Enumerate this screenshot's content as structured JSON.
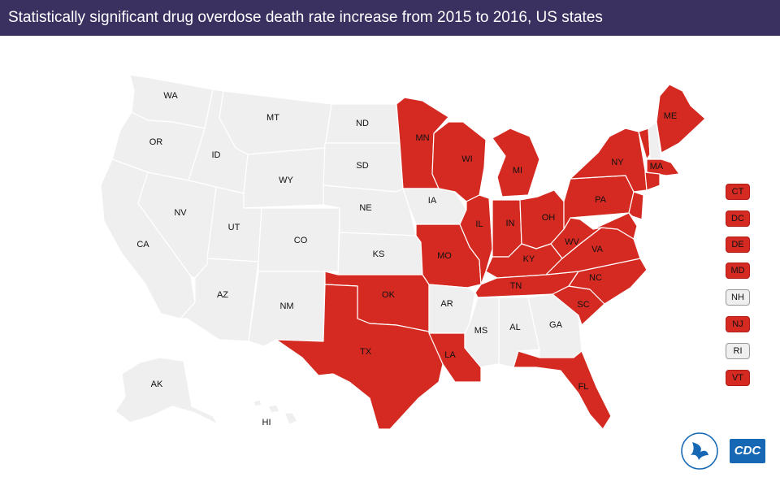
{
  "title": "Statistically significant drug overdose death rate increase from 2015 to 2016, US states",
  "colors": {
    "increase": "#d42a22",
    "no_increase": "#efefef",
    "border": "#ffffff",
    "title_bg": "#3a3161"
  },
  "states": [
    {
      "abbr": "WA",
      "increase": false
    },
    {
      "abbr": "OR",
      "increase": false
    },
    {
      "abbr": "CA",
      "increase": false
    },
    {
      "abbr": "ID",
      "increase": false
    },
    {
      "abbr": "NV",
      "increase": false
    },
    {
      "abbr": "MT",
      "increase": false
    },
    {
      "abbr": "WY",
      "increase": false
    },
    {
      "abbr": "UT",
      "increase": false
    },
    {
      "abbr": "AZ",
      "increase": false
    },
    {
      "abbr": "CO",
      "increase": false
    },
    {
      "abbr": "NM",
      "increase": false
    },
    {
      "abbr": "ND",
      "increase": false
    },
    {
      "abbr": "SD",
      "increase": false
    },
    {
      "abbr": "NE",
      "increase": false
    },
    {
      "abbr": "KS",
      "increase": false
    },
    {
      "abbr": "OK",
      "increase": true
    },
    {
      "abbr": "TX",
      "increase": true
    },
    {
      "abbr": "MN",
      "increase": true
    },
    {
      "abbr": "IA",
      "increase": false
    },
    {
      "abbr": "MO",
      "increase": true
    },
    {
      "abbr": "AR",
      "increase": false
    },
    {
      "abbr": "LA",
      "increase": true
    },
    {
      "abbr": "WI",
      "increase": true
    },
    {
      "abbr": "IL",
      "increase": true
    },
    {
      "abbr": "MI",
      "increase": true
    },
    {
      "abbr": "IN",
      "increase": true
    },
    {
      "abbr": "OH",
      "increase": true
    },
    {
      "abbr": "KY",
      "increase": true
    },
    {
      "abbr": "TN",
      "increase": true
    },
    {
      "abbr": "MS",
      "increase": false
    },
    {
      "abbr": "AL",
      "increase": false
    },
    {
      "abbr": "GA",
      "increase": false
    },
    {
      "abbr": "FL",
      "increase": true
    },
    {
      "abbr": "SC",
      "increase": true
    },
    {
      "abbr": "NC",
      "increase": true
    },
    {
      "abbr": "VA",
      "increase": true
    },
    {
      "abbr": "WV",
      "increase": true
    },
    {
      "abbr": "PA",
      "increase": true
    },
    {
      "abbr": "NY",
      "increase": true
    },
    {
      "abbr": "VT",
      "increase": true
    },
    {
      "abbr": "NH",
      "increase": false
    },
    {
      "abbr": "ME",
      "increase": true
    },
    {
      "abbr": "MA",
      "increase": true
    },
    {
      "abbr": "AK",
      "increase": false
    },
    {
      "abbr": "HI",
      "increase": false
    }
  ],
  "small_states": [
    {
      "abbr": "CT",
      "increase": true
    },
    {
      "abbr": "DC",
      "increase": true
    },
    {
      "abbr": "DE",
      "increase": true
    },
    {
      "abbr": "MD",
      "increase": true
    },
    {
      "abbr": "NH",
      "increase": false
    },
    {
      "abbr": "NJ",
      "increase": true
    },
    {
      "abbr": "RI",
      "increase": false
    },
    {
      "abbr": "VT",
      "increase": true
    }
  ],
  "logos": {
    "cdc_text": "CDC",
    "hhs_icon": "hhs-eagle-seal-icon"
  }
}
